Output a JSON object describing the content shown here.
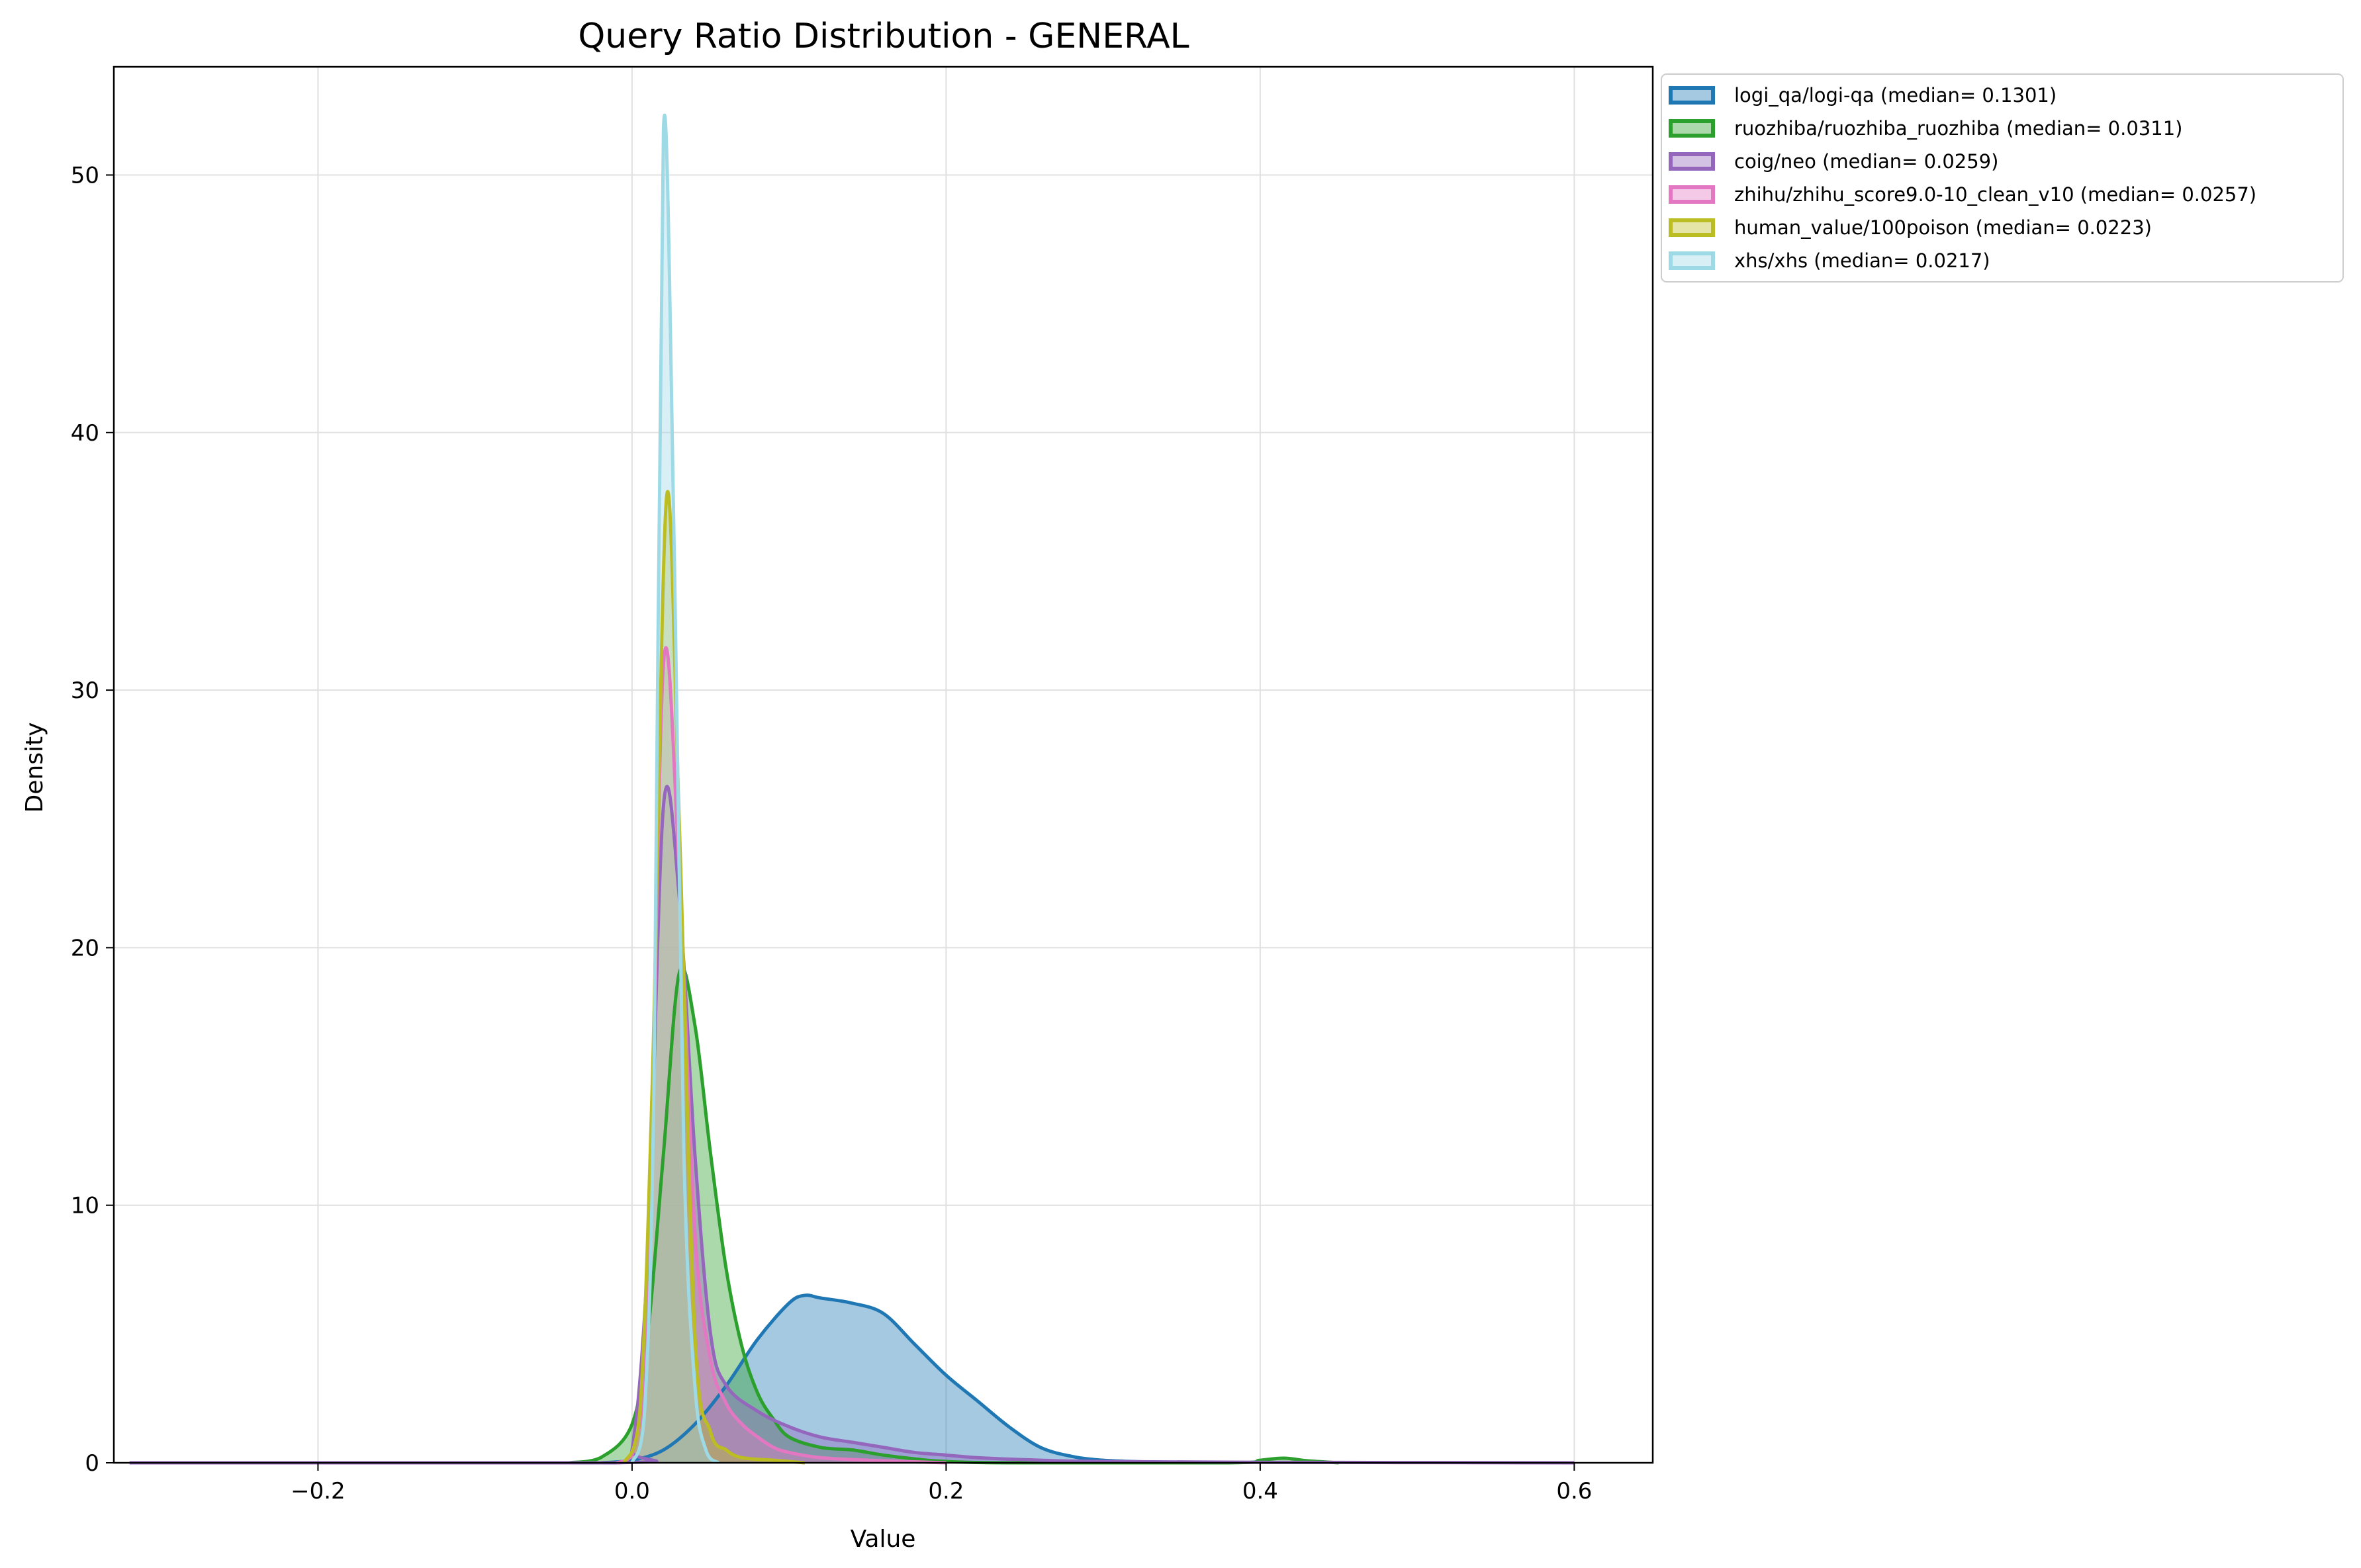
{
  "chart_data": {
    "type": "area",
    "title": "Query Ratio Distribution - GENERAL",
    "xlabel": "Value",
    "ylabel": "Density",
    "xlim": [
      -0.33,
      0.65
    ],
    "ylim": [
      0,
      54.2
    ],
    "xticks": [
      -0.2,
      0.0,
      0.2,
      0.4,
      0.6
    ],
    "xtick_labels": [
      "−0.2",
      "0.0",
      "0.2",
      "0.4",
      "0.6"
    ],
    "yticks": [
      0,
      10,
      20,
      30,
      40,
      50
    ],
    "ytick_labels": [
      "0",
      "10",
      "20",
      "30",
      "40",
      "50"
    ],
    "grid": true,
    "legend_position": "outside-top-right",
    "series": [
      {
        "name": "logi_qa/logi-qa (median= 0.1301)",
        "color": "#1f77b4",
        "points": [
          [
            -0.02,
            0
          ],
          [
            0.0,
            0.1
          ],
          [
            0.02,
            0.5
          ],
          [
            0.04,
            1.5
          ],
          [
            0.06,
            3.0
          ],
          [
            0.08,
            4.8
          ],
          [
            0.1,
            6.2
          ],
          [
            0.11,
            6.5
          ],
          [
            0.12,
            6.4
          ],
          [
            0.14,
            6.2
          ],
          [
            0.16,
            5.8
          ],
          [
            0.18,
            4.6
          ],
          [
            0.2,
            3.4
          ],
          [
            0.22,
            2.4
          ],
          [
            0.24,
            1.4
          ],
          [
            0.26,
            0.6
          ],
          [
            0.28,
            0.25
          ],
          [
            0.3,
            0.1
          ],
          [
            0.33,
            0.03
          ],
          [
            0.36,
            0
          ]
        ]
      },
      {
        "name": "ruozhiba/ruozhiba_ruozhiba (median= 0.0311)",
        "color": "#2ca02c",
        "points": [
          [
            -0.04,
            0
          ],
          [
            -0.02,
            0.2
          ],
          [
            0.0,
            1.5
          ],
          [
            0.01,
            5.0
          ],
          [
            0.02,
            12.0
          ],
          [
            0.03,
            19.0
          ],
          [
            0.04,
            17.0
          ],
          [
            0.05,
            12.0
          ],
          [
            0.06,
            7.5
          ],
          [
            0.07,
            4.5
          ],
          [
            0.08,
            2.7
          ],
          [
            0.09,
            1.7
          ],
          [
            0.1,
            1.0
          ],
          [
            0.12,
            0.6
          ],
          [
            0.14,
            0.5
          ],
          [
            0.16,
            0.3
          ],
          [
            0.18,
            0.15
          ],
          [
            0.2,
            0.05
          ],
          [
            0.24,
            0
          ],
          [
            0.38,
            0
          ],
          [
            0.4,
            0.1
          ],
          [
            0.415,
            0.18
          ],
          [
            0.43,
            0.08
          ],
          [
            0.45,
            0
          ]
        ]
      },
      {
        "name": "coig/neo (median= 0.0259)",
        "color": "#9467bd",
        "points": [
          [
            -0.32,
            0
          ],
          [
            -0.01,
            0
          ],
          [
            0.0,
            0.5
          ],
          [
            0.01,
            8.0
          ],
          [
            0.02,
            25.5
          ],
          [
            0.03,
            22.0
          ],
          [
            0.04,
            12.0
          ],
          [
            0.05,
            5.0
          ],
          [
            0.06,
            3.0
          ],
          [
            0.08,
            2.0
          ],
          [
            0.1,
            1.4
          ],
          [
            0.12,
            1.0
          ],
          [
            0.14,
            0.8
          ],
          [
            0.16,
            0.6
          ],
          [
            0.18,
            0.4
          ],
          [
            0.2,
            0.3
          ],
          [
            0.22,
            0.2
          ],
          [
            0.26,
            0.1
          ],
          [
            0.3,
            0.05
          ],
          [
            0.4,
            0.02
          ],
          [
            0.5,
            0.01
          ],
          [
            0.6,
            0
          ]
        ]
      },
      {
        "name": "zhihu/zhihu_score9.0-10_clean_v10 (median= 0.0257)",
        "color": "#e377c2",
        "points": [
          [
            -0.01,
            0
          ],
          [
            0.0,
            0.3
          ],
          [
            0.01,
            6.0
          ],
          [
            0.02,
            31.0
          ],
          [
            0.03,
            23.0
          ],
          [
            0.04,
            9.0
          ],
          [
            0.05,
            4.0
          ],
          [
            0.06,
            2.3
          ],
          [
            0.07,
            1.5
          ],
          [
            0.08,
            1.0
          ],
          [
            0.09,
            0.6
          ],
          [
            0.1,
            0.4
          ],
          [
            0.12,
            0.2
          ],
          [
            0.15,
            0.1
          ],
          [
            0.2,
            0
          ]
        ]
      },
      {
        "name": "human_value/100poison (median= 0.0223)",
        "color": "#bcbd22",
        "points": [
          [
            -0.005,
            0
          ],
          [
            0.005,
            2.0
          ],
          [
            0.013,
            15.0
          ],
          [
            0.022,
            37.5
          ],
          [
            0.03,
            25.0
          ],
          [
            0.04,
            5.0
          ],
          [
            0.05,
            1.2
          ],
          [
            0.06,
            0.5
          ],
          [
            0.07,
            0.2
          ],
          [
            0.09,
            0.1
          ],
          [
            0.11,
            0
          ]
        ]
      },
      {
        "name": "xhs/xhs (median= 0.0217)",
        "color": "#9edae5",
        "points": [
          [
            0.0,
            0
          ],
          [
            0.008,
            2.0
          ],
          [
            0.014,
            15.0
          ],
          [
            0.02,
            51.8
          ],
          [
            0.027,
            35.0
          ],
          [
            0.033,
            12.0
          ],
          [
            0.04,
            3.0
          ],
          [
            0.047,
            0.5
          ],
          [
            0.055,
            0
          ]
        ]
      }
    ]
  }
}
